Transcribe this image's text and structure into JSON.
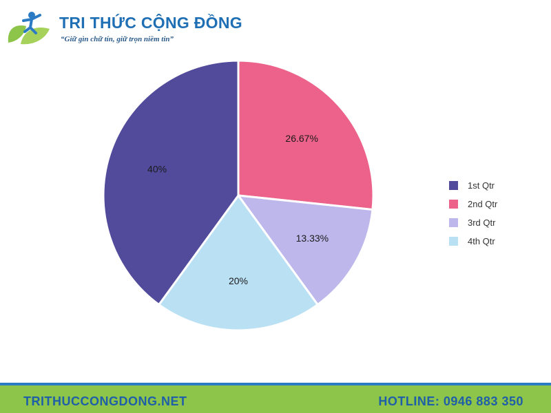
{
  "header": {
    "title": "TRI THỨC CỘNG ĐỒNG",
    "slogan": "“Giữ gìn chữ tín, giữ trọn niềm tin”",
    "logo_icon": "leaf-person-logo-icon"
  },
  "chart_data": {
    "type": "pie",
    "categories": [
      "1st Qtr",
      "2nd Qtr",
      "3rd Qtr",
      "4th Qtr"
    ],
    "values": [
      40,
      26.67,
      13.33,
      20
    ],
    "data_labels": [
      "40%",
      "26.67%",
      "13.33%",
      "20%"
    ],
    "colors": [
      "#524b9c",
      "#ed628a",
      "#beb7ec",
      "#bae0f4"
    ],
    "legend_position": "right",
    "start_angle": "12 o'clock",
    "direction": "clockwise-from-2nd-Qtr"
  },
  "footer": {
    "website": "TRITHUCCONGDONG.NET",
    "hotline": "HOTLINE: 0946 883 350",
    "colors": {
      "bar": "#8dc44a",
      "stripe": "#2b7bc4",
      "text": "#1f5fa8"
    }
  }
}
